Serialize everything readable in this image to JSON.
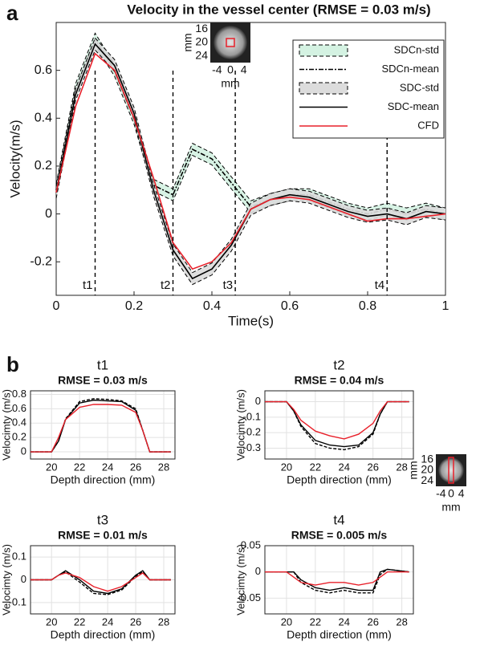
{
  "chart_data": [
    {
      "type": "line",
      "panel_label": "a",
      "title": "Velocity in the vessel center (RMSE = 0.03 m/s)",
      "xlabel": "Time(s)",
      "ylabel": "Velocity(m/s)",
      "x": [
        0,
        0.05,
        0.1,
        0.15,
        0.2,
        0.25,
        0.3,
        0.35,
        0.4,
        0.45,
        0.5,
        0.55,
        0.6,
        0.65,
        0.7,
        0.75,
        0.8,
        0.85,
        0.9,
        0.95,
        1
      ],
      "xlim": [
        0,
        1
      ],
      "xticks": [
        0,
        0.2,
        0.4,
        0.6,
        0.8,
        1
      ],
      "ylim": [
        -0.34,
        0.8
      ],
      "yticks": [
        -0.2,
        0,
        0.2,
        0.4,
        0.6
      ],
      "grid": false,
      "legend": "upper right",
      "series": [
        {
          "name": "SDCn-std",
          "color": "#000000",
          "fill": "#d4f2e2",
          "dash": "5,3",
          "lower": [
            0.075,
            0.495,
            0.705,
            0.575,
            0.375,
            0.095,
            0.055,
            0.245,
            0.205,
            0.105,
            0.005,
            0.035,
            0.055,
            0.055,
            0.025,
            -0.005,
            -0.025,
            -0.005,
            -0.025,
            -0.005,
            -0.025
          ],
          "upper": [
            0.125,
            0.545,
            0.755,
            0.625,
            0.425,
            0.145,
            0.105,
            0.295,
            0.255,
            0.155,
            0.055,
            0.085,
            0.105,
            0.105,
            0.075,
            0.045,
            0.025,
            0.045,
            0.025,
            0.045,
            0.025
          ]
        },
        {
          "name": "SDCn-mean",
          "color": "#000000",
          "dash": "6,2,2,2",
          "values": [
            0.1,
            0.52,
            0.73,
            0.6,
            0.4,
            0.12,
            0.08,
            0.27,
            0.23,
            0.13,
            0.03,
            0.06,
            0.08,
            0.08,
            0.05,
            0.02,
            0.0,
            0.02,
            0.0,
            0.02,
            0.0
          ]
        },
        {
          "name": "SDC-std",
          "color": "#000000",
          "fill": "#dcdcdc",
          "dash": "5,3",
          "lower": [
            0.065,
            0.475,
            0.685,
            0.595,
            0.395,
            0.075,
            -0.175,
            -0.295,
            -0.255,
            -0.155,
            -0.005,
            0.035,
            0.055,
            0.045,
            0.015,
            -0.015,
            -0.035,
            -0.025,
            -0.045,
            -0.015,
            -0.025
          ],
          "upper": [
            0.115,
            0.525,
            0.735,
            0.645,
            0.445,
            0.125,
            -0.125,
            -0.245,
            -0.205,
            -0.105,
            0.045,
            0.085,
            0.105,
            0.095,
            0.065,
            0.035,
            0.015,
            0.025,
            0.005,
            0.035,
            0.025
          ]
        },
        {
          "name": "SDC-mean",
          "color": "#000000",
          "values": [
            0.09,
            0.5,
            0.71,
            0.62,
            0.42,
            0.1,
            -0.15,
            -0.27,
            -0.23,
            -0.13,
            0.02,
            0.06,
            0.08,
            0.07,
            0.04,
            0.01,
            -0.01,
            0.0,
            -0.02,
            0.01,
            0.0
          ]
        },
        {
          "name": "CFD",
          "color": "#e8202a",
          "values": [
            0.09,
            0.45,
            0.67,
            0.6,
            0.4,
            0.15,
            -0.12,
            -0.23,
            -0.2,
            -0.12,
            0.02,
            0.06,
            0.07,
            0.06,
            0.03,
            0.0,
            -0.03,
            -0.02,
            -0.02,
            -0.01,
            0.0
          ]
        }
      ],
      "markers": [
        {
          "x": 0.1,
          "label": "t1"
        },
        {
          "x": 0.3,
          "label": "t2"
        },
        {
          "x": 0.46,
          "label": "t3"
        },
        {
          "x": 0.85,
          "label": "t4"
        }
      ],
      "inset": {
        "xticks": [
          -4,
          0,
          4
        ],
        "yticks": [
          16,
          20,
          24
        ],
        "xlabel": "mm",
        "ylabel": "mm"
      }
    },
    {
      "type": "line",
      "panel_label": "b",
      "title": "t1",
      "subtitle": "RMSE = 0.03 m/s",
      "xlabel": "Depth direction (mm)",
      "ylabel": "Velocimty (m/s)",
      "x": [
        18.5,
        20,
        20.5,
        21,
        22,
        23,
        24,
        25,
        26,
        26.5,
        27,
        28.5
      ],
      "xlim": [
        18.5,
        28.8
      ],
      "xticks": [
        20,
        22,
        24,
        26,
        28
      ],
      "ylim": [
        -0.1,
        0.85
      ],
      "yticks": [
        0,
        0.2,
        0.4,
        0.6,
        0.8
      ],
      "grid": true,
      "series": [
        {
          "color": "#000000",
          "values": [
            0,
            0,
            0.15,
            0.45,
            0.68,
            0.72,
            0.71,
            0.7,
            0.58,
            0.3,
            0,
            0
          ]
        },
        {
          "color": "#000000",
          "dash": "4,2",
          "values": [
            0,
            0,
            0.15,
            0.46,
            0.7,
            0.74,
            0.73,
            0.71,
            0.6,
            0.3,
            0,
            0
          ]
        },
        {
          "color": "#e8202a",
          "values": [
            0,
            0,
            0.2,
            0.45,
            0.62,
            0.66,
            0.66,
            0.65,
            0.55,
            0.3,
            0,
            0
          ]
        }
      ]
    },
    {
      "type": "line",
      "title": "t2",
      "subtitle": "RMSE = 0.04 m/s",
      "xlabel": "Depth direction (mm)",
      "ylabel": "Velocimty (m/s)",
      "x": [
        18.5,
        20,
        20.5,
        21,
        22,
        23,
        24,
        25,
        26,
        26.5,
        27,
        28.5
      ],
      "xlim": [
        18.5,
        28.8
      ],
      "xticks": [
        20,
        22,
        24,
        26,
        28
      ],
      "ylim": [
        -0.37,
        0.07
      ],
      "yticks": [
        -0.3,
        -0.2,
        -0.1,
        0
      ],
      "grid": true,
      "series": [
        {
          "color": "#000000",
          "values": [
            0,
            0,
            -0.06,
            -0.15,
            -0.25,
            -0.28,
            -0.29,
            -0.28,
            -0.2,
            -0.08,
            0,
            0
          ]
        },
        {
          "color": "#000000",
          "dash": "4,2",
          "values": [
            0,
            0,
            -0.06,
            -0.16,
            -0.27,
            -0.3,
            -0.31,
            -0.29,
            -0.21,
            -0.08,
            0,
            0
          ]
        },
        {
          "color": "#e8202a",
          "values": [
            0,
            0,
            -0.05,
            -0.12,
            -0.19,
            -0.22,
            -0.24,
            -0.21,
            -0.14,
            -0.06,
            0,
            0
          ]
        }
      ],
      "inset": {
        "xticks": [
          -4,
          0,
          4
        ],
        "yticks": [
          16,
          20,
          24
        ],
        "xlabel": "mm",
        "ylabel": "mm"
      }
    },
    {
      "type": "line",
      "title": "t3",
      "subtitle": "RMSE = 0.01 m/s",
      "xlabel": "Depth direction (mm)",
      "ylabel": "Velocimty (m/s)",
      "x": [
        18.5,
        20,
        20.5,
        21,
        22,
        23,
        24,
        25,
        26,
        26.5,
        27,
        28.5
      ],
      "xlim": [
        18.5,
        28.8
      ],
      "xticks": [
        20,
        22,
        24,
        26,
        28
      ],
      "ylim": [
        -0.15,
        0.15
      ],
      "yticks": [
        -0.1,
        0,
        0.1
      ],
      "grid": true,
      "series": [
        {
          "color": "#000000",
          "values": [
            0,
            0,
            0.02,
            0.04,
            0.0,
            -0.05,
            -0.06,
            -0.04,
            0.02,
            0.04,
            0,
            0
          ]
        },
        {
          "color": "#000000",
          "dash": "4,2",
          "values": [
            0,
            0,
            0.02,
            0.035,
            -0.01,
            -0.06,
            -0.065,
            -0.045,
            0.015,
            0.035,
            0,
            0
          ]
        },
        {
          "color": "#e8202a",
          "values": [
            0,
            0,
            0.02,
            0.03,
            0.01,
            -0.03,
            -0.05,
            -0.03,
            0.01,
            0.03,
            0,
            0
          ]
        }
      ]
    },
    {
      "type": "line",
      "title": "t4",
      "subtitle": "RMSE = 0.005 m/s",
      "xlabel": "Depth direction (mm)",
      "ylabel": "Velocimty (m/s)",
      "x": [
        18.5,
        20,
        20.5,
        21,
        22,
        23,
        24,
        25,
        26,
        26.5,
        27,
        28.5
      ],
      "xlim": [
        18.5,
        28.8
      ],
      "xticks": [
        20,
        22,
        24,
        26,
        28
      ],
      "ylim": [
        -0.08,
        0.05
      ],
      "yticks": [
        -0.05,
        0,
        0.05
      ],
      "grid": true,
      "series": [
        {
          "color": "#000000",
          "values": [
            0,
            0,
            0,
            -0.015,
            -0.03,
            -0.035,
            -0.03,
            -0.035,
            -0.035,
            0,
            0.005,
            0
          ]
        },
        {
          "color": "#000000",
          "dash": "4,2",
          "values": [
            0,
            0,
            0,
            -0.02,
            -0.035,
            -0.04,
            -0.035,
            -0.04,
            -0.04,
            -0.005,
            0.005,
            0
          ]
        },
        {
          "color": "#e8202a",
          "values": [
            0,
            0,
            -0.01,
            -0.02,
            -0.025,
            -0.02,
            -0.02,
            -0.025,
            -0.02,
            -0.01,
            0,
            0
          ]
        }
      ]
    }
  ]
}
